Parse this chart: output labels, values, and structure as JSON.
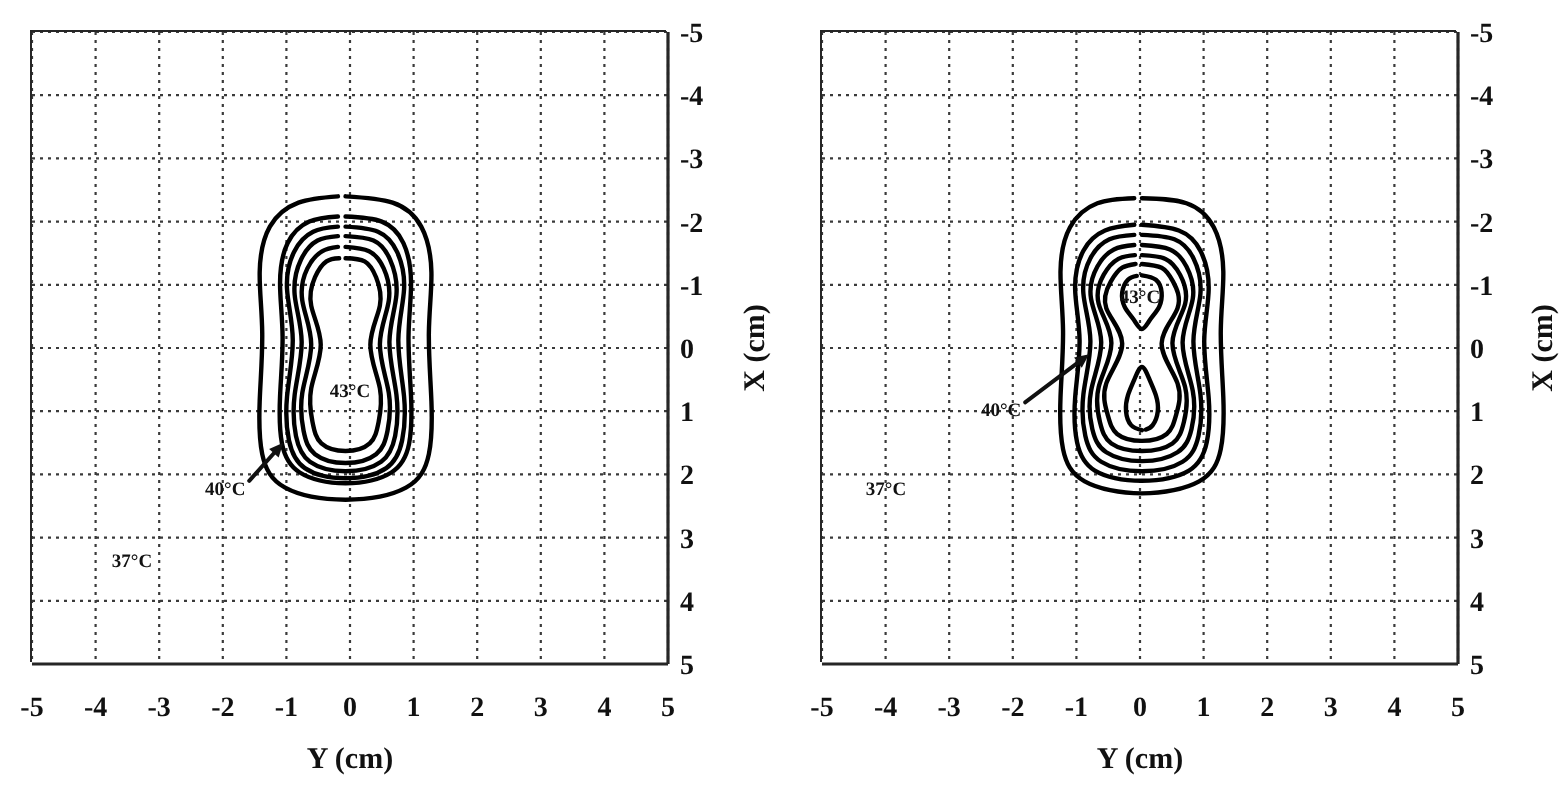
{
  "chart_data": [
    {
      "type": "line",
      "xlabel": "Y (cm)",
      "ylabel": "X (cm)",
      "xlim": [
        -5,
        5
      ],
      "ylim": [
        5,
        -5
      ],
      "xticks": [
        -5,
        -4,
        -3,
        -2,
        -1,
        0,
        1,
        2,
        3,
        4,
        5
      ],
      "yticks": [
        -5,
        -4,
        -3,
        -2,
        -1,
        0,
        1,
        2,
        3,
        4,
        5
      ],
      "grid": true,
      "marker": "none",
      "line_style": "solid",
      "series": [
        {
          "color": "#000000",
          "x": [
            -0.07,
            0.67,
            1.12,
            1.28,
            1.24,
            1.28,
            1.24,
            0.88,
            -0.07,
            -1.02,
            -1.38,
            -1.42,
            -1.38,
            -1.42,
            -1.26,
            -0.81,
            -0.19
          ],
          "values": [
            -2.4,
            -2.3,
            -1.92,
            -1.2,
            -0.24,
            0.84,
            1.68,
            2.21,
            2.4,
            2.21,
            1.68,
            0.84,
            -0.24,
            -1.2,
            -1.92,
            -2.3,
            -2.4
          ]
        },
        {
          "color": "#000000",
          "x": [
            -0.07,
            0.5,
            0.84,
            0.96,
            0.92,
            0.96,
            0.93,
            0.65,
            -0.07,
            -0.79,
            -1.07,
            -1.1,
            -1.06,
            -1.1,
            -0.98,
            -0.64,
            -0.19
          ],
          "values": [
            -2.08,
            -2.0,
            -1.66,
            -1.03,
            -0.18,
            0.77,
            1.51,
            1.97,
            2.14,
            1.97,
            1.51,
            0.77,
            -0.18,
            -1.03,
            -1.66,
            -2.0,
            -2.08
          ]
        },
        {
          "color": "#000000",
          "x": [
            -0.07,
            0.44,
            0.74,
            0.85,
            0.76,
            0.85,
            0.82,
            0.57,
            -0.07,
            -0.71,
            -0.96,
            -0.99,
            -0.9,
            -0.99,
            -0.88,
            -0.58,
            -0.19
          ],
          "values": [
            -1.92,
            -1.84,
            -1.52,
            -0.93,
            -0.13,
            0.77,
            1.46,
            1.9,
            2.06,
            1.9,
            1.46,
            0.77,
            -0.13,
            -0.93,
            -1.52,
            -1.84,
            -1.92
          ]
        },
        {
          "color": "#000000",
          "x": [
            -0.07,
            0.37,
            0.63,
            0.73,
            0.62,
            0.73,
            0.71,
            0.49,
            -0.07,
            -0.63,
            -0.85,
            -0.87,
            -0.76,
            -0.87,
            -0.77,
            -0.51,
            -0.19
          ],
          "values": [
            -1.77,
            -1.7,
            -1.4,
            -0.84,
            -0.1,
            0.74,
            1.39,
            1.8,
            1.95,
            1.8,
            1.39,
            0.74,
            -0.1,
            -0.84,
            -1.4,
            -1.7,
            -1.77
          ]
        },
        {
          "color": "#000000",
          "x": [
            -0.07,
            0.3,
            0.53,
            0.61,
            0.47,
            0.61,
            0.59,
            0.41,
            -0.07,
            -0.55,
            -0.73,
            -0.75,
            -0.61,
            -0.75,
            -0.67,
            -0.44,
            -0.19
          ],
          "values": [
            -1.6,
            -1.53,
            -1.26,
            -0.75,
            -0.06,
            0.71,
            1.31,
            1.68,
            1.82,
            1.68,
            1.31,
            0.71,
            -0.06,
            -0.75,
            -1.26,
            -1.53,
            -1.6
          ]
        },
        {
          "color": "#000000",
          "x": [
            -0.07,
            0.23,
            0.41,
            0.47,
            0.32,
            0.47,
            0.45,
            0.31,
            -0.07,
            -0.45,
            -0.59,
            -0.61,
            -0.46,
            -0.61,
            -0.55,
            -0.37,
            -0.17
          ],
          "values": [
            -1.42,
            -1.37,
            -1.12,
            -0.67,
            -0.05,
            0.64,
            1.17,
            1.51,
            1.63,
            1.51,
            1.17,
            0.64,
            -0.05,
            -0.67,
            -1.12,
            -1.37,
            -1.42
          ]
        }
      ],
      "annotations": [
        "43°C",
        {
          "text": "40°C",
          "x": -1.05,
          "y": 1.5
        },
        "37°C"
      ]
    },
    {
      "type": "line",
      "xlabel": "Y (cm)",
      "ylabel": "X (cm)",
      "xlim": [
        -5,
        5
      ],
      "ylim": [
        5,
        -5
      ],
      "xticks": [
        -5,
        -4,
        -3,
        -2,
        -1,
        0,
        1,
        2,
        3,
        4,
        5
      ],
      "yticks": [
        -5,
        -4,
        -3,
        -2,
        -1,
        0,
        1,
        2,
        3,
        4,
        5
      ],
      "grid": true,
      "marker": "none",
      "line_style": "solid",
      "series": [
        {
          "color": "#000000",
          "x": [
            0.03,
            0.73,
            1.16,
            1.31,
            1.27,
            1.31,
            1.27,
            0.93,
            0.03,
            -0.87,
            -1.21,
            -1.25,
            -1.21,
            -1.25,
            -1.1,
            -0.67,
            -0.09
          ],
          "values": [
            -2.37,
            -2.29,
            -1.91,
            -1.21,
            -0.27,
            0.78,
            1.6,
            2.11,
            2.3,
            2.11,
            1.6,
            0.78,
            -0.27,
            -1.21,
            -1.91,
            -2.29,
            -2.37
          ]
        },
        {
          "color": "#000000",
          "x": [
            0.03,
            0.61,
            0.95,
            1.08,
            1.01,
            1.08,
            1.05,
            0.77,
            0.03,
            -0.71,
            -0.99,
            -1.02,
            -0.95,
            -1.02,
            -0.89,
            -0.55,
            -0.09
          ],
          "values": [
            -1.95,
            -1.86,
            -1.54,
            -0.93,
            -0.12,
            0.79,
            1.49,
            1.94,
            2.1,
            1.94,
            1.49,
            0.79,
            -0.12,
            -0.93,
            -1.54,
            -1.86,
            -1.95
          ]
        },
        {
          "color": "#000000",
          "x": [
            0.03,
            0.54,
            0.84,
            0.95,
            0.84,
            0.95,
            0.92,
            0.67,
            0.03,
            -0.61,
            -0.86,
            -0.89,
            -0.78,
            -0.89,
            -0.78,
            -0.48,
            -0.09
          ],
          "values": [
            -1.79,
            -1.72,
            -1.42,
            -0.86,
            -0.11,
            0.73,
            1.39,
            1.8,
            1.95,
            1.8,
            1.39,
            0.73,
            -0.11,
            -0.86,
            -1.42,
            -1.72,
            -1.79
          ]
        },
        {
          "color": "#000000",
          "x": [
            0.03,
            0.47,
            0.73,
            0.83,
            0.67,
            0.83,
            0.81,
            0.59,
            0.03,
            -0.53,
            -0.75,
            -0.77,
            -0.61,
            -0.77,
            -0.67,
            -0.41,
            -0.09
          ],
          "values": [
            -1.63,
            -1.56,
            -1.29,
            -0.78,
            -0.09,
            0.68,
            1.28,
            1.65,
            1.79,
            1.65,
            1.28,
            0.68,
            -0.09,
            -0.78,
            -1.29,
            -1.56,
            -1.63
          ]
        },
        {
          "color": "#000000",
          "x": [
            0.03,
            0.4,
            0.63,
            0.71,
            0.51,
            0.71,
            0.69,
            0.51,
            0.03,
            -0.45,
            -0.63,
            -0.65,
            -0.45,
            -0.65,
            -0.57,
            -0.34,
            -0.08
          ],
          "values": [
            -1.47,
            -1.41,
            -1.16,
            -0.7,
            -0.08,
            0.62,
            1.17,
            1.51,
            1.63,
            1.51,
            1.17,
            0.62,
            -0.08,
            -0.7,
            -1.16,
            -1.41,
            -1.47
          ]
        },
        {
          "color": "#000000",
          "x": [
            0.03,
            0.34,
            0.52,
            0.59,
            0.34,
            0.59,
            0.57,
            0.42,
            0.03,
            -0.36,
            -0.51,
            -0.53,
            -0.28,
            -0.53,
            -0.46,
            -0.28,
            -0.07
          ],
          "values": [
            -1.33,
            -1.27,
            -1.05,
            -0.63,
            -0.07,
            0.56,
            1.05,
            1.36,
            1.47,
            1.36,
            1.05,
            0.56,
            -0.07,
            -0.63,
            -1.05,
            -1.27,
            -1.33
          ]
        },
        {
          "color": "#000000",
          "x": [
            0.03,
            0.25,
            0.34,
            0.3,
            0.16,
            0.03,
            -0.1,
            -0.24,
            -0.28,
            -0.19,
            -0.05
          ],
          "values": [
            -1.15,
            -1.08,
            -0.88,
            -0.65,
            -0.45,
            -0.3,
            -0.45,
            -0.65,
            -0.88,
            -1.08,
            -1.14
          ]
        },
        {
          "color": "#000000",
          "x": [
            0.03,
            -0.14,
            -0.22,
            -0.19,
            -0.09,
            0.03,
            0.15,
            0.25,
            0.28,
            0.2,
            0.09
          ],
          "values": [
            1.3,
            1.22,
            1.0,
            0.75,
            0.5,
            0.3,
            0.5,
            0.75,
            1.0,
            1.22,
            1.29
          ]
        }
      ],
      "annotations": [
        "43°C",
        {
          "text": "40°C",
          "x": -0.8,
          "y": 0.1
        },
        "37°C"
      ]
    }
  ]
}
